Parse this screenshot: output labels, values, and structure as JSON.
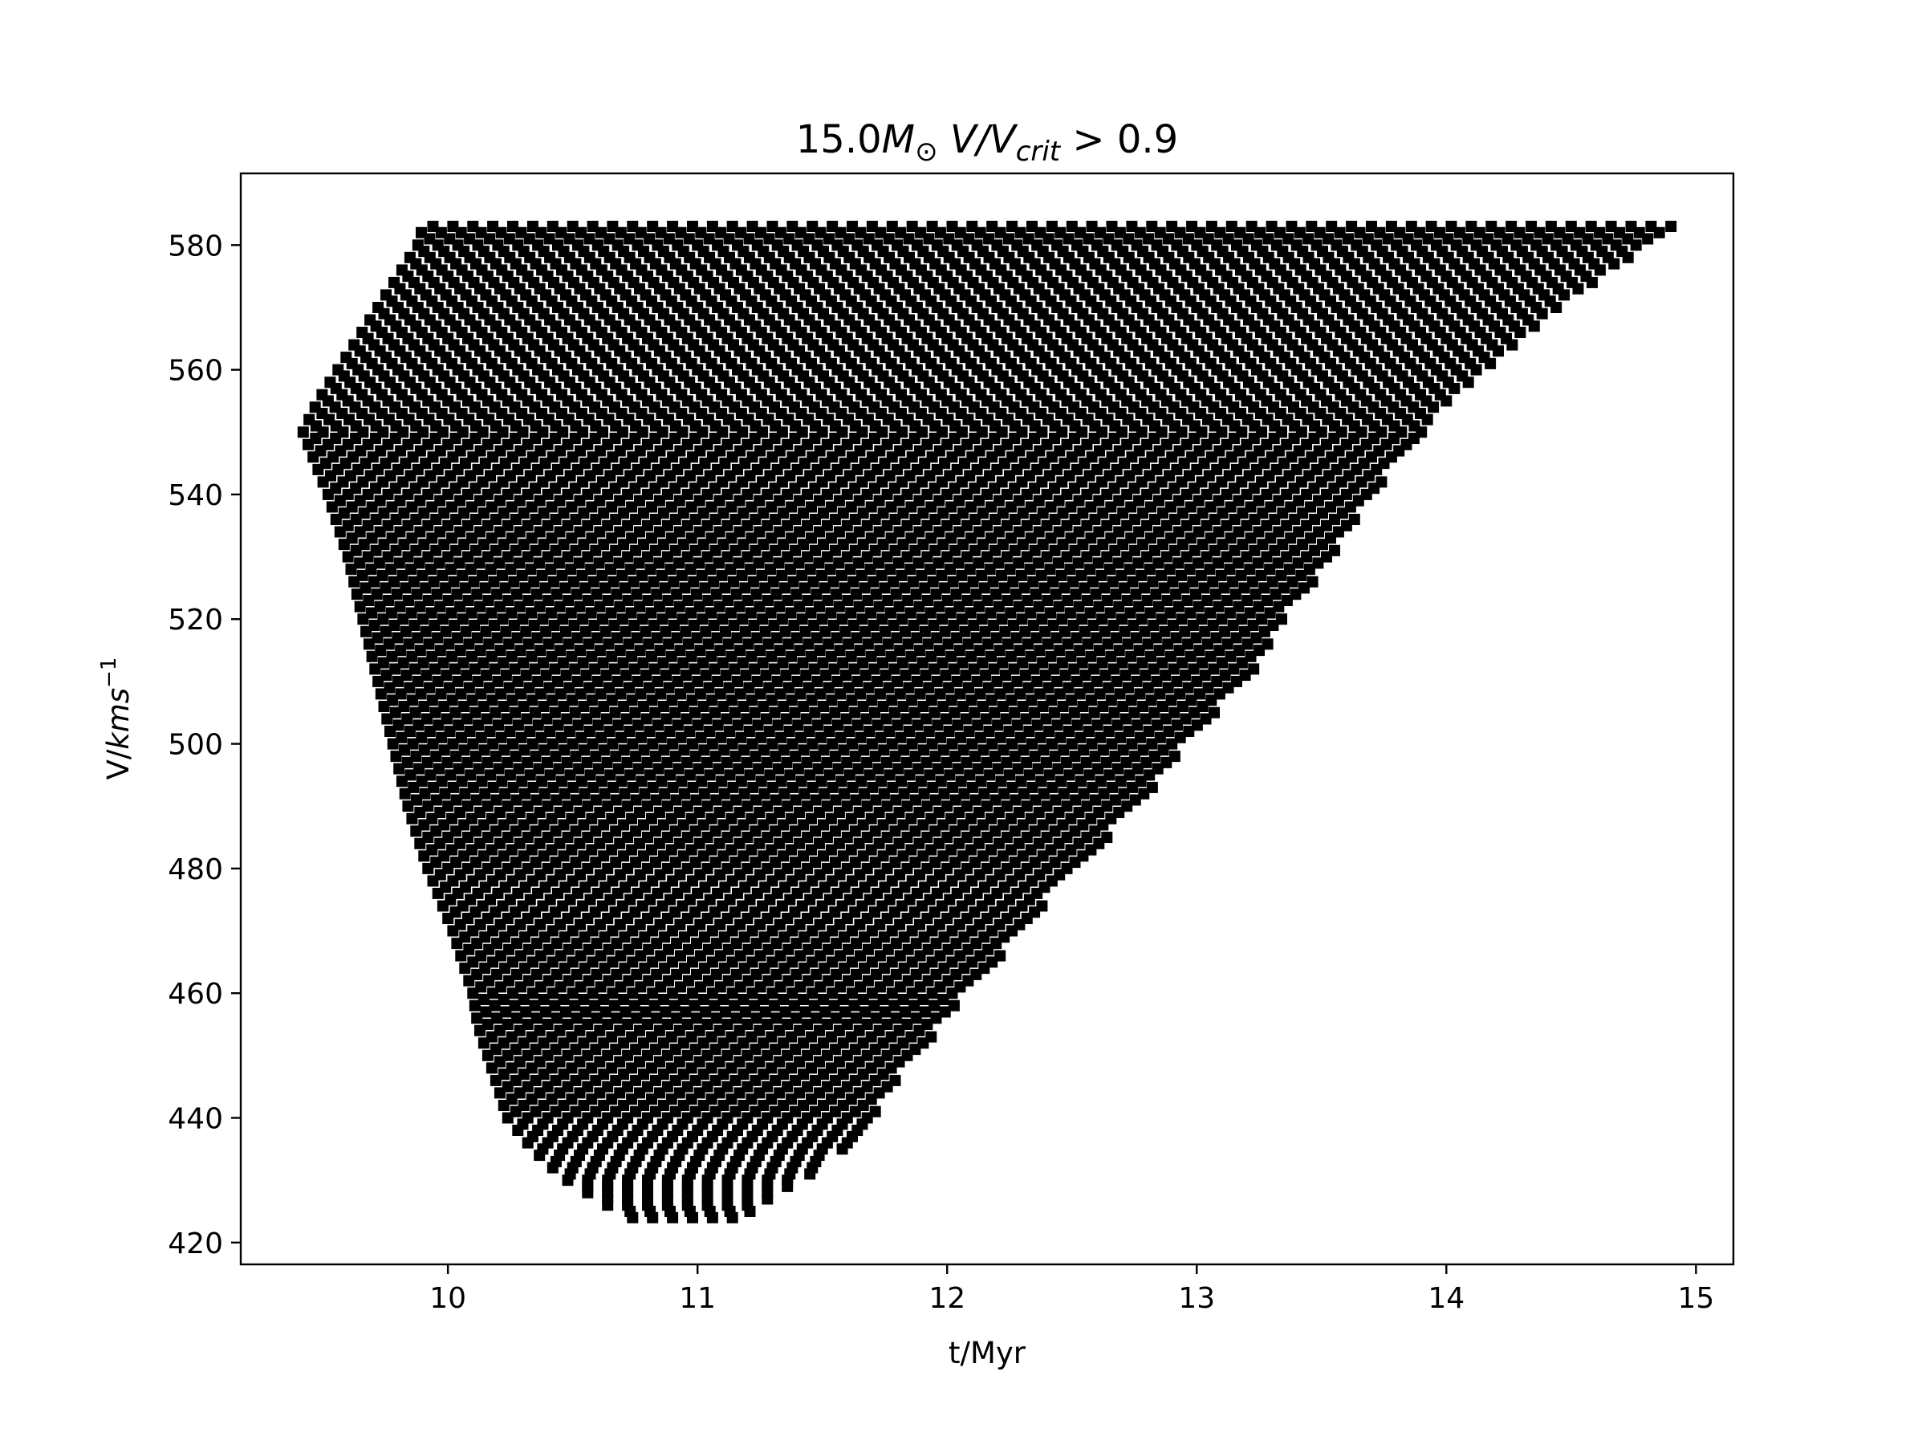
{
  "chart_data": {
    "type": "scatter",
    "title": {
      "prefix": "15.0",
      "mass_symbol": "M",
      "mass_subscript": "⊙",
      "ratio_num": "V",
      "ratio_slash": "/",
      "ratio_den": "V",
      "ratio_den_subscript": "crit",
      "condition": " > 0.9"
    },
    "xlabel": "t/Myr",
    "ylabel": {
      "prefix": "V/",
      "units": "kms",
      "exponent": "−1"
    },
    "xlim": [
      9.17,
      15.15
    ],
    "ylim": [
      416.5,
      591.5
    ],
    "xticks": [
      {
        "value": 10,
        "label": "10"
      },
      {
        "value": 11,
        "label": "11"
      },
      {
        "value": 12,
        "label": "12"
      },
      {
        "value": 13,
        "label": "13"
      },
      {
        "value": 14,
        "label": "14"
      },
      {
        "value": 15,
        "label": "15"
      }
    ],
    "yticks": [
      {
        "value": 420,
        "label": "420"
      },
      {
        "value": 440,
        "label": "440"
      },
      {
        "value": 460,
        "label": "460"
      },
      {
        "value": 480,
        "label": "480"
      },
      {
        "value": 500,
        "label": "500"
      },
      {
        "value": 520,
        "label": "520"
      },
      {
        "value": 540,
        "label": "540"
      },
      {
        "value": 560,
        "label": "560"
      },
      {
        "value": 580,
        "label": "580"
      }
    ],
    "marker": "square",
    "marker_color": "#000000",
    "grid": false,
    "legend": false,
    "region": {
      "description_of_points": "dense grid of square markers filling the region where V/Vcrit > 0.9",
      "v_min": 424,
      "v_max": 583,
      "v_step": 1,
      "t_step": 0.08,
      "boundary": [
        {
          "v": 424,
          "t_min": 10.74,
          "t_max": 11.16
        },
        {
          "v": 426,
          "t_min": 10.64,
          "t_max": 11.26
        },
        {
          "v": 428,
          "t_min": 10.56,
          "t_max": 11.34
        },
        {
          "v": 430,
          "t_min": 10.48,
          "t_max": 11.42
        },
        {
          "v": 432,
          "t_min": 10.42,
          "t_max": 11.5
        },
        {
          "v": 435,
          "t_min": 10.34,
          "t_max": 11.58
        },
        {
          "v": 440,
          "t_min": 10.24,
          "t_max": 11.7
        },
        {
          "v": 445,
          "t_min": 10.2,
          "t_max": 11.78
        },
        {
          "v": 450,
          "t_min": 10.16,
          "t_max": 11.88
        },
        {
          "v": 455,
          "t_min": 10.12,
          "t_max": 11.98
        },
        {
          "v": 460,
          "t_min": 10.1,
          "t_max": 12.08
        },
        {
          "v": 470,
          "t_min": 10.02,
          "t_max": 12.3
        },
        {
          "v": 480,
          "t_min": 9.92,
          "t_max": 12.5
        },
        {
          "v": 490,
          "t_min": 9.84,
          "t_max": 12.78
        },
        {
          "v": 500,
          "t_min": 9.78,
          "t_max": 12.95
        },
        {
          "v": 510,
          "t_min": 9.72,
          "t_max": 13.2
        },
        {
          "v": 520,
          "t_min": 9.66,
          "t_max": 13.35
        },
        {
          "v": 530,
          "t_min": 9.6,
          "t_max": 13.55
        },
        {
          "v": 540,
          "t_min": 9.52,
          "t_max": 13.7
        },
        {
          "v": 550,
          "t_min": 9.42,
          "t_max": 13.9
        },
        {
          "v": 555,
          "t_min": 9.48,
          "t_max": 14.0
        },
        {
          "v": 560,
          "t_min": 9.56,
          "t_max": 14.15
        },
        {
          "v": 565,
          "t_min": 9.64,
          "t_max": 14.3
        },
        {
          "v": 570,
          "t_min": 9.72,
          "t_max": 14.45
        },
        {
          "v": 575,
          "t_min": 9.8,
          "t_max": 14.62
        },
        {
          "v": 580,
          "t_min": 9.88,
          "t_max": 14.8
        },
        {
          "v": 583,
          "t_min": 9.9,
          "t_max": 14.9
        }
      ]
    }
  }
}
